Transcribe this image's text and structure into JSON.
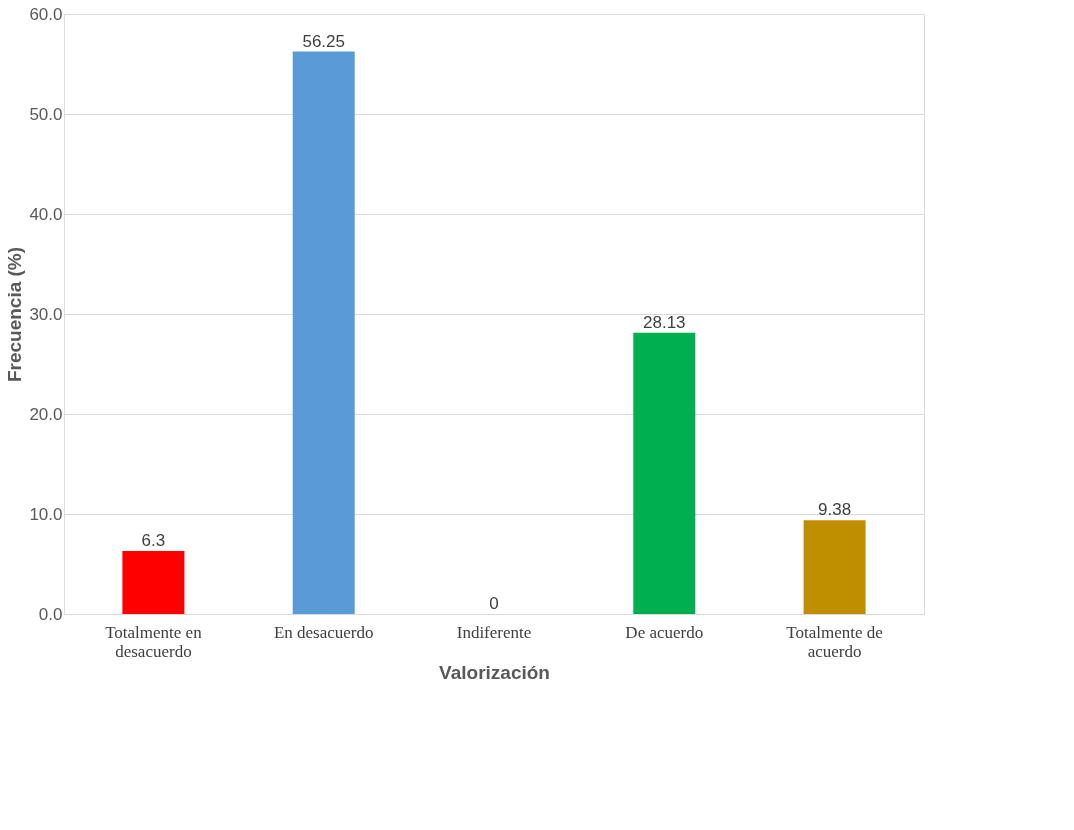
{
  "chart_data": {
    "type": "bar",
    "categories": [
      "Totalmente en desacuerdo",
      "En desacuerdo",
      "Indiferente",
      "De acuerdo",
      "Totalmente de acuerdo"
    ],
    "values": [
      6.3,
      56.25,
      0,
      28.13,
      9.38
    ],
    "colors": [
      "#ff0000",
      "#5b9bd5",
      "#c8c800",
      "#00b050",
      "#bf8f00"
    ],
    "xlabel": "Valorización",
    "ylabel": "Frecuencia (%)",
    "ylim": [
      0,
      60
    ],
    "yticks": [
      {
        "value": 0,
        "label": "0.0"
      },
      {
        "value": 10,
        "label": "10.0"
      },
      {
        "value": 20,
        "label": "20.0"
      },
      {
        "value": 30,
        "label": "30.0"
      },
      {
        "value": 40,
        "label": "40.0"
      },
      {
        "value": 50,
        "label": "50.0"
      },
      {
        "value": 60,
        "label": "60.0"
      }
    ],
    "grid": "y",
    "data_labels": true,
    "legend": false
  }
}
